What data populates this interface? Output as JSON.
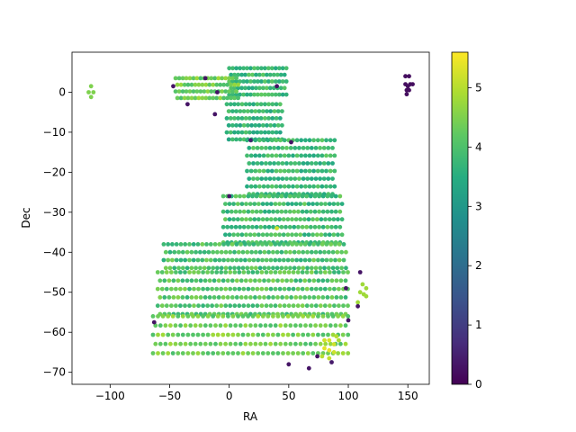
{
  "chart_data": {
    "type": "scatter",
    "title": "",
    "xlabel": "RA",
    "ylabel": "Dec",
    "xlim": [
      -132,
      168
    ],
    "ylim": [
      -73,
      10
    ],
    "grid": false,
    "colormap": "viridis",
    "x_ticks": [
      -100,
      -50,
      0,
      50,
      100,
      150
    ],
    "x_tick_labels": [
      "−100",
      "−50",
      "0",
      "50",
      "100",
      "150"
    ],
    "y_ticks": [
      0,
      -10,
      -20,
      -30,
      -40,
      -50,
      -60,
      -70
    ],
    "y_tick_labels": [
      "0",
      "−10",
      "−20",
      "−30",
      "−40",
      "−50",
      "−60",
      "−70"
    ],
    "colorbar": {
      "range": [
        0,
        5.6
      ],
      "ticks": [
        0,
        1,
        2,
        3,
        4,
        5
      ],
      "tick_labels": [
        "0",
        "1",
        "2",
        "3",
        "4",
        "5"
      ]
    },
    "base_value": 3.9,
    "grid_regions": [
      {
        "dec_range": [
          -2,
          6
        ],
        "ra_range": [
          0,
          48
        ],
        "spacing": 3.0,
        "value": 3.8
      },
      {
        "dec_range": [
          -3,
          3.5
        ],
        "ra_range": [
          -45,
          8
        ],
        "spacing": 3.0,
        "value": 4.4
      },
      {
        "dec_range": [
          -12,
          -3
        ],
        "ra_range": [
          -2,
          45
        ],
        "spacing": 3.2,
        "value": 3.7
      },
      {
        "dec_range": [
          -26,
          -12
        ],
        "ra_range": [
          15,
          90
        ],
        "spacing": 3.5,
        "value": 3.8
      },
      {
        "dec_range": [
          -38,
          -26
        ],
        "ra_range": [
          -5,
          95
        ],
        "spacing": 3.5,
        "value": 3.9
      },
      {
        "dec_range": [
          -45,
          -38
        ],
        "ra_range": [
          -55,
          98
        ],
        "spacing": 3.6,
        "value": 4.0
      },
      {
        "dec_range": [
          -56,
          -45
        ],
        "ra_range": [
          -60,
          100
        ],
        "spacing": 3.8,
        "value": 4.1
      },
      {
        "dec_range": [
          -67,
          -56
        ],
        "ra_range": [
          -64,
          100
        ],
        "spacing": 4.2,
        "value": 4.4
      }
    ],
    "special_points": [
      {
        "ra": -116,
        "dec": 1.5,
        "value": 4.5
      },
      {
        "ra": -114,
        "dec": 0,
        "value": 4.5
      },
      {
        "ra": -116,
        "dec": -1.2,
        "value": 4.5
      },
      {
        "ra": -118,
        "dec": 0,
        "value": 4.5
      },
      {
        "ra": 148,
        "dec": 4,
        "value": 0.2
      },
      {
        "ra": 151,
        "dec": 4,
        "value": 0.2
      },
      {
        "ra": 148,
        "dec": 2,
        "value": 0.2
      },
      {
        "ra": 150,
        "dec": 1.5,
        "value": 0.2
      },
      {
        "ra": 152,
        "dec": 2,
        "value": 0.2
      },
      {
        "ra": 154,
        "dec": 2,
        "value": 0.2
      },
      {
        "ra": 149,
        "dec": 0.5,
        "value": 0.2
      },
      {
        "ra": 151,
        "dec": 0.5,
        "value": 0.2
      },
      {
        "ra": 149,
        "dec": -0.5,
        "value": 0.2
      },
      {
        "ra": 112,
        "dec": -48,
        "value": 4.8
      },
      {
        "ra": 115,
        "dec": -49,
        "value": 4.8
      },
      {
        "ra": 113,
        "dec": -50.5,
        "value": 4.8
      },
      {
        "ra": 110,
        "dec": -50,
        "value": 4.8
      },
      {
        "ra": 115,
        "dec": -51,
        "value": 4.8
      },
      {
        "ra": 108,
        "dec": -52.5,
        "value": 4.8
      },
      {
        "ra": 80,
        "dec": -62,
        "value": 5.2
      },
      {
        "ra": 84,
        "dec": -62,
        "value": 5.3
      },
      {
        "ra": 88,
        "dec": -63,
        "value": 5.2
      },
      {
        "ra": 80,
        "dec": -64,
        "value": 5.4
      },
      {
        "ra": 84,
        "dec": -64.5,
        "value": 5.4
      },
      {
        "ra": 88,
        "dec": -65,
        "value": 5.2
      },
      {
        "ra": 78,
        "dec": -66,
        "value": 5.0
      },
      {
        "ra": 90,
        "dec": -61,
        "value": 5.0
      },
      {
        "ra": 84,
        "dec": -66.5,
        "value": 5.1
      },
      {
        "ra": 92,
        "dec": -62,
        "value": 4.9
      },
      {
        "ra": -20,
        "dec": 3.5,
        "value": 0.3
      },
      {
        "ra": -47,
        "dec": 1.5,
        "value": 0.3
      },
      {
        "ra": -10,
        "dec": 0,
        "value": 0.3
      },
      {
        "ra": -12,
        "dec": -5.5,
        "value": 0.3
      },
      {
        "ra": -35,
        "dec": -3,
        "value": 0.3
      },
      {
        "ra": 40,
        "dec": 1.5,
        "value": 0.3
      },
      {
        "ra": 52,
        "dec": -12.5,
        "value": 0.3
      },
      {
        "ra": 18,
        "dec": -12,
        "value": 0.5
      },
      {
        "ra": 0,
        "dec": -26,
        "value": 0.3
      },
      {
        "ra": 110,
        "dec": -45,
        "value": 0.3
      },
      {
        "ra": 98,
        "dec": -49,
        "value": 0.3
      },
      {
        "ra": 100,
        "dec": -57,
        "value": 0.3
      },
      {
        "ra": 108,
        "dec": -53.5,
        "value": 0.3
      },
      {
        "ra": -63,
        "dec": -57.5,
        "value": 0.3
      },
      {
        "ra": 74,
        "dec": -66,
        "value": 0.3
      },
      {
        "ra": 50,
        "dec": -68,
        "value": 0.3
      },
      {
        "ra": 67,
        "dec": -69,
        "value": 0.3
      },
      {
        "ra": 86,
        "dec": -67.5,
        "value": 0.4
      },
      {
        "ra": 40,
        "dec": -34,
        "value": 5.2
      }
    ]
  }
}
